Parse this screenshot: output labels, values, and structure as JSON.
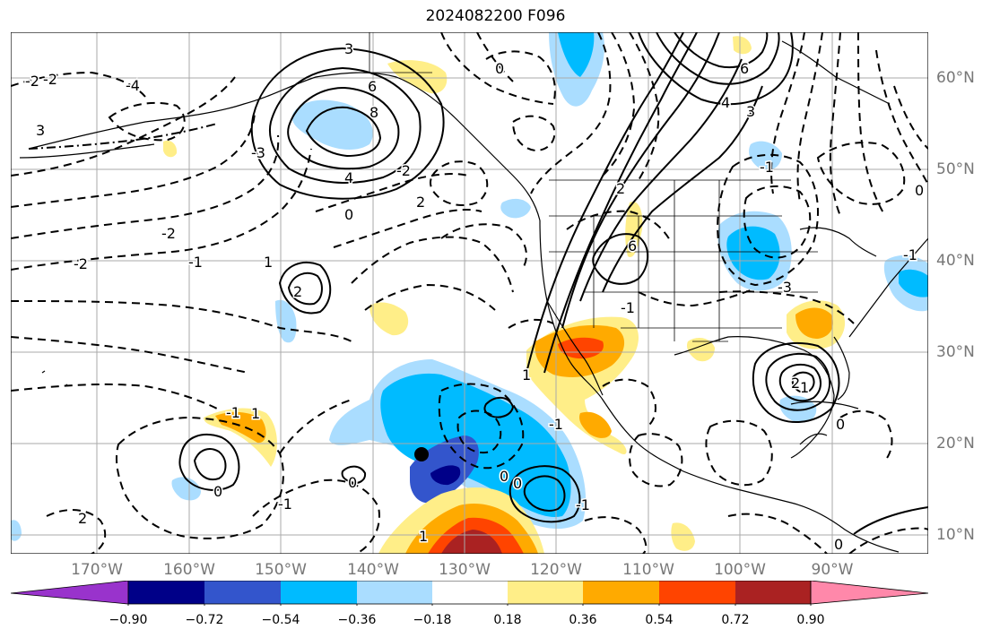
{
  "title": "2024082200 F096",
  "latitude_labels": [
    "60°N",
    "50°N",
    "40°N",
    "30°N",
    "20°N",
    "10°N"
  ],
  "longitude_labels": [
    "170°W",
    "160°W",
    "150°W",
    "140°W",
    "130°W",
    "120°W",
    "110°W",
    "100°W",
    "90°W"
  ],
  "colorbar": {
    "ticks": [
      "−0.90",
      "−0.72",
      "−0.54",
      "−0.36",
      "−0.18",
      "0.18",
      "0.36",
      "0.54",
      "0.72",
      "0.90"
    ],
    "colors": [
      "#9933cc",
      "#000088",
      "#3355cc",
      "#00bbff",
      "#aaddff",
      "#ffffff",
      "#ffee88",
      "#ffaa00",
      "#ff4400",
      "#aa2222",
      "#ff88aa"
    ]
  },
  "contour_labels": [
    "3",
    "6",
    "8",
    "4",
    "0",
    "2",
    "-2",
    "-2",
    "3",
    "-4",
    "-3",
    "-2",
    "-2",
    "-1",
    "1",
    "2",
    "-2",
    "0",
    "2",
    "6",
    "4",
    "3",
    "6",
    "-1",
    "-3",
    "-1",
    "0",
    "-1",
    "2",
    "1",
    "0",
    "-1",
    "1",
    "-1",
    "0",
    "0",
    "1",
    "-1",
    "1",
    "-1",
    "0",
    "2",
    "0",
    "0"
  ],
  "marker": "storm-center"
}
